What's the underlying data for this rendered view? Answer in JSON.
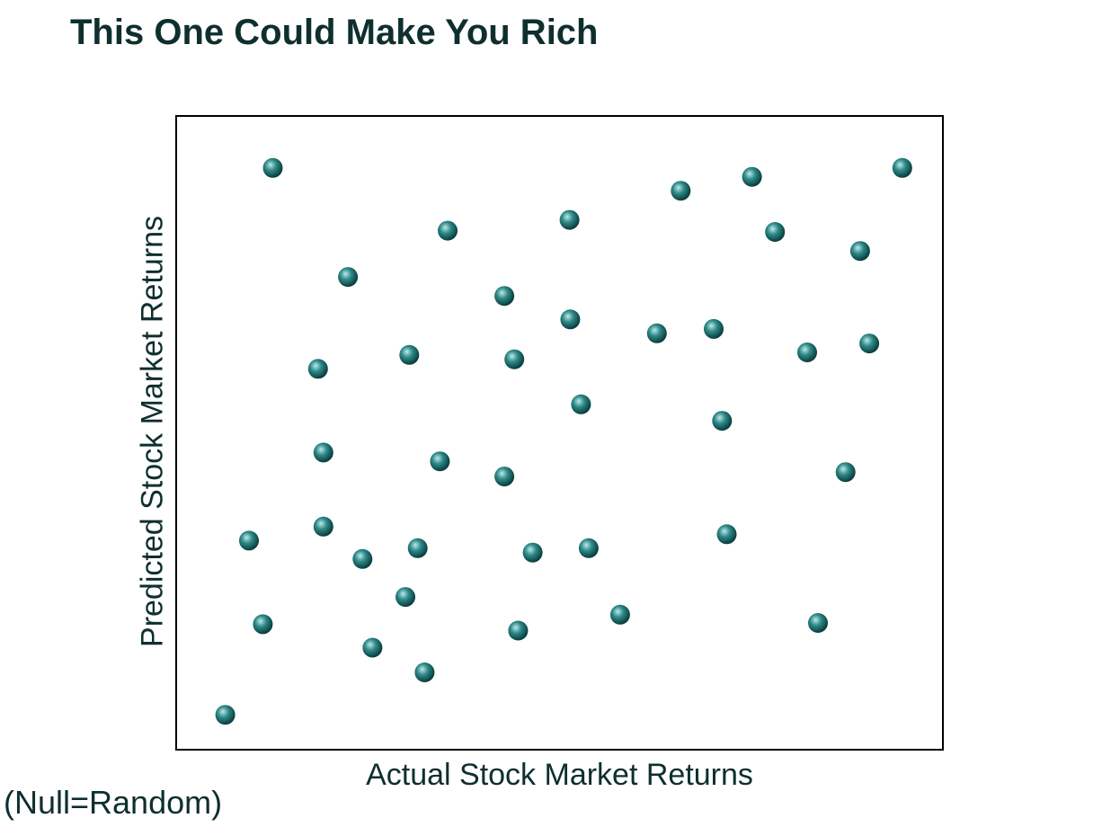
{
  "title": "This One Could Make You Rich",
  "note": "(Null=Random)",
  "colors": {
    "marker_light": "#bfe9e9",
    "marker_mid": "#2e8a8a",
    "marker_dark": "#0a3b3b",
    "text": "#0f2f2f",
    "frame": "#000000"
  },
  "chart_data": {
    "type": "scatter",
    "xlabel": "Actual Stock Market Returns",
    "ylabel": "Predicted Stock Market Returns",
    "xlim": [
      0,
      100
    ],
    "ylim": [
      0,
      100
    ],
    "grid": false,
    "ticks": false,
    "points": [
      {
        "x": 12.6,
        "y": 91.8
      },
      {
        "x": 35.4,
        "y": 81.9
      },
      {
        "x": 22.4,
        "y": 74.6
      },
      {
        "x": 51.3,
        "y": 83.6
      },
      {
        "x": 65.8,
        "y": 88.2
      },
      {
        "x": 75.1,
        "y": 90.4
      },
      {
        "x": 94.7,
        "y": 91.8
      },
      {
        "x": 78.1,
        "y": 81.7
      },
      {
        "x": 89.2,
        "y": 78.7
      },
      {
        "x": 42.8,
        "y": 71.6
      },
      {
        "x": 51.4,
        "y": 67.9
      },
      {
        "x": 62.7,
        "y": 65.7
      },
      {
        "x": 70.1,
        "y": 66.4
      },
      {
        "x": 18.5,
        "y": 60.1
      },
      {
        "x": 30.4,
        "y": 62.3
      },
      {
        "x": 44.1,
        "y": 61.6
      },
      {
        "x": 82.3,
        "y": 62.7
      },
      {
        "x": 90.4,
        "y": 64.1
      },
      {
        "x": 52.8,
        "y": 54.5
      },
      {
        "x": 71.2,
        "y": 51.9
      },
      {
        "x": 19.2,
        "y": 46.9
      },
      {
        "x": 34.4,
        "y": 45.5
      },
      {
        "x": 42.8,
        "y": 43.1
      },
      {
        "x": 87.3,
        "y": 43.8
      },
      {
        "x": 9.5,
        "y": 33.0
      },
      {
        "x": 19.2,
        "y": 35.2
      },
      {
        "x": 24.3,
        "y": 30.1
      },
      {
        "x": 31.5,
        "y": 31.8
      },
      {
        "x": 46.5,
        "y": 31.1
      },
      {
        "x": 53.8,
        "y": 31.8
      },
      {
        "x": 71.8,
        "y": 34.0
      },
      {
        "x": 29.9,
        "y": 24.1
      },
      {
        "x": 11.3,
        "y": 19.8
      },
      {
        "x": 57.9,
        "y": 21.3
      },
      {
        "x": 44.6,
        "y": 18.8
      },
      {
        "x": 83.7,
        "y": 20.0
      },
      {
        "x": 25.6,
        "y": 16.1
      },
      {
        "x": 32.4,
        "y": 12.2
      },
      {
        "x": 6.4,
        "y": 5.5
      }
    ]
  }
}
